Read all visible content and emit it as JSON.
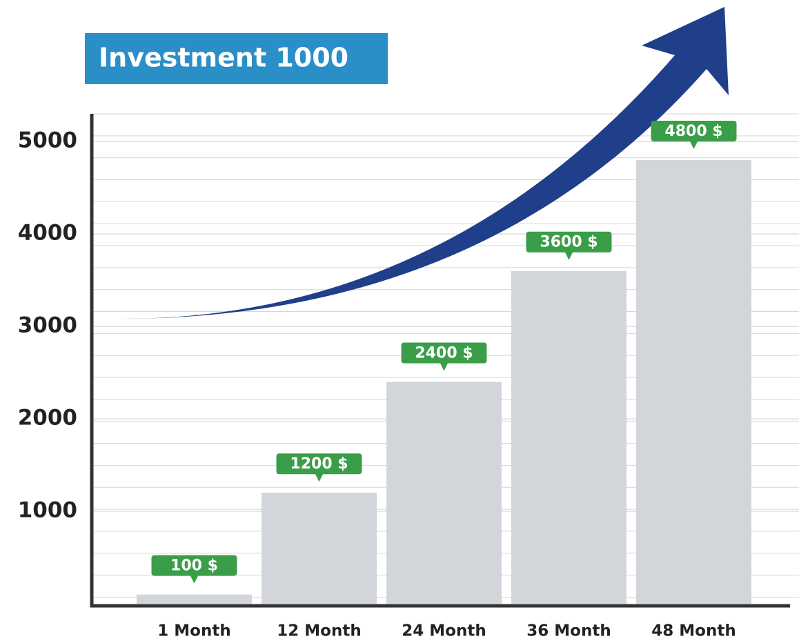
{
  "chart_data": {
    "type": "bar",
    "title": "Investment 1000",
    "categories": [
      "1 Month",
      "12 Month",
      "24 Month",
      "36 Month",
      "48 Month"
    ],
    "values": [
      100,
      1200,
      2400,
      3600,
      4800
    ],
    "value_labels": [
      "100 $",
      "1200 $",
      "2400 $",
      "3600 $",
      "4800 $"
    ],
    "color": "#d2d5d9",
    "label_color": "#3a9e48",
    "title_color": "#2b8fc7",
    "ylim": [
      0,
      5300
    ],
    "yticks": [
      1000,
      2000,
      3000,
      4000,
      5000
    ],
    "grid": true
  }
}
